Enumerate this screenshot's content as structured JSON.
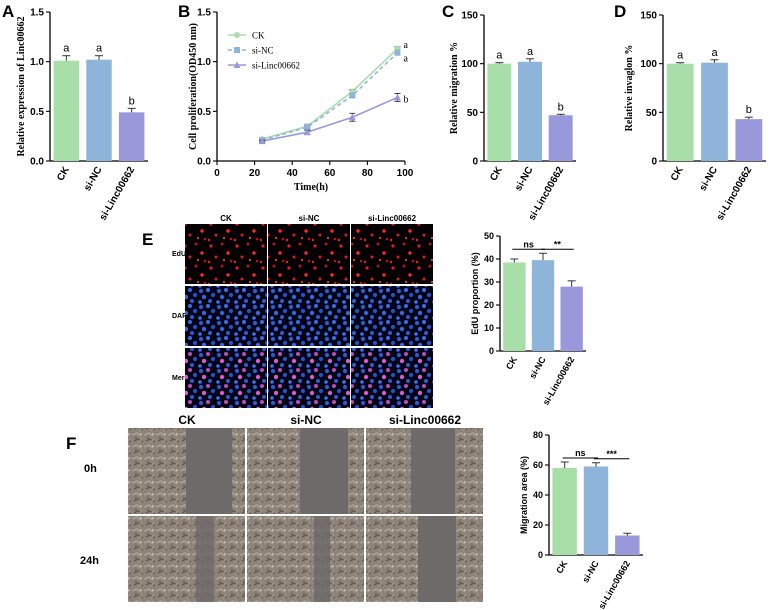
{
  "panel_letters": [
    "A",
    "B",
    "C",
    "D",
    "E",
    "F"
  ],
  "edu_images": {
    "columns": [
      "CK",
      "si-NC",
      "si-Linc00662"
    ],
    "rows": [
      "EdU",
      "DAPI",
      "Merge"
    ]
  },
  "scratch_images": {
    "columns": [
      "CK",
      "si-NC",
      "si-Linc00662"
    ],
    "rows": [
      "0h",
      "24h"
    ]
  },
  "colors": {
    "ck": "#a8dea8",
    "sinc": "#8fb4d9",
    "si": "#9898db",
    "error": "#333333"
  },
  "chart_data": [
    {
      "panel": "A",
      "type": "bar",
      "categories": [
        "CK",
        "si-NC",
        "si-Linc00662"
      ],
      "values": [
        1.01,
        1.02,
        0.49
      ],
      "errors": [
        0.05,
        0.04,
        0.04
      ],
      "significance": [
        "a",
        "a",
        "b"
      ],
      "ylabel": "Relative expression of Linc00662",
      "ylim": [
        0,
        1.5
      ],
      "yticks": [
        "0.0",
        "0.5",
        "1.0",
        "1.5"
      ]
    },
    {
      "panel": "B",
      "type": "line",
      "x": [
        24,
        48,
        72,
        96
      ],
      "series": [
        {
          "name": "CK",
          "values": [
            0.22,
            0.35,
            0.7,
            1.13
          ],
          "errors": [
            0.01,
            0.02,
            0.02,
            0.02
          ],
          "label": "a"
        },
        {
          "name": "si-NC",
          "values": [
            0.21,
            0.34,
            0.66,
            1.09
          ],
          "errors": [
            0.01,
            0.01,
            0.02,
            0.02
          ],
          "label": "a"
        },
        {
          "name": "si-Linc00662",
          "values": [
            0.2,
            0.29,
            0.44,
            0.64
          ],
          "errors": [
            0.01,
            0.02,
            0.04,
            0.04
          ],
          "label": "b"
        }
      ],
      "xlabel": "Time(h)",
      "ylabel": "Cell proliferation(OD450 nm)",
      "xlim": [
        0,
        100
      ],
      "ylim": [
        0,
        1.5
      ],
      "xticks": [
        "0",
        "20",
        "40",
        "60",
        "80",
        "100"
      ],
      "yticks": [
        "0.0",
        "0.5",
        "1.0",
        "1.5"
      ]
    },
    {
      "panel": "C",
      "type": "bar",
      "categories": [
        "CK",
        "si-NC",
        "si-Linc00662"
      ],
      "values": [
        100,
        102,
        47
      ],
      "errors": [
        1,
        3,
        1
      ],
      "significance": [
        "a",
        "a",
        "b"
      ],
      "ylabel": "Relative migration %",
      "ylim": [
        0,
        150
      ],
      "yticks": [
        "0",
        "50",
        "100",
        "150"
      ]
    },
    {
      "panel": "D",
      "type": "bar",
      "categories": [
        "CK",
        "si-NC",
        "si-Linc00662"
      ],
      "values": [
        100,
        101,
        43
      ],
      "errors": [
        1,
        3,
        2
      ],
      "significance": [
        "a",
        "a",
        "b"
      ],
      "ylabel": "Relative invaglon %",
      "ylim": [
        0,
        150
      ],
      "yticks": [
        "0",
        "50",
        "100",
        "150"
      ]
    },
    {
      "panel": "E",
      "type": "bar",
      "categories": [
        "CK",
        "si-NC",
        "si-Linc00662"
      ],
      "values": [
        38.5,
        39.5,
        28
      ],
      "errors": [
        1.5,
        3,
        2.5
      ],
      "comparisons": [
        {
          "from": 0,
          "to": 1,
          "label": "ns"
        },
        {
          "from": 1,
          "to": 2,
          "label": "**"
        }
      ],
      "ylabel": "EdU proportion (%)",
      "ylim": [
        0,
        50
      ],
      "yticks": [
        "0",
        "10",
        "20",
        "30",
        "40",
        "50"
      ]
    },
    {
      "panel": "F",
      "type": "bar",
      "categories": [
        "CK",
        "si-NC",
        "si-Linc00662"
      ],
      "values": [
        58,
        59,
        13
      ],
      "errors": [
        4,
        2.5,
        1.5
      ],
      "comparisons": [
        {
          "from": 0,
          "to": 1,
          "label": "ns"
        },
        {
          "from": 1,
          "to": 2,
          "label": "***"
        }
      ],
      "ylabel": "Migration area (%)",
      "ylim": [
        0,
        80
      ],
      "yticks": [
        "0",
        "20",
        "40",
        "60",
        "80"
      ]
    }
  ]
}
